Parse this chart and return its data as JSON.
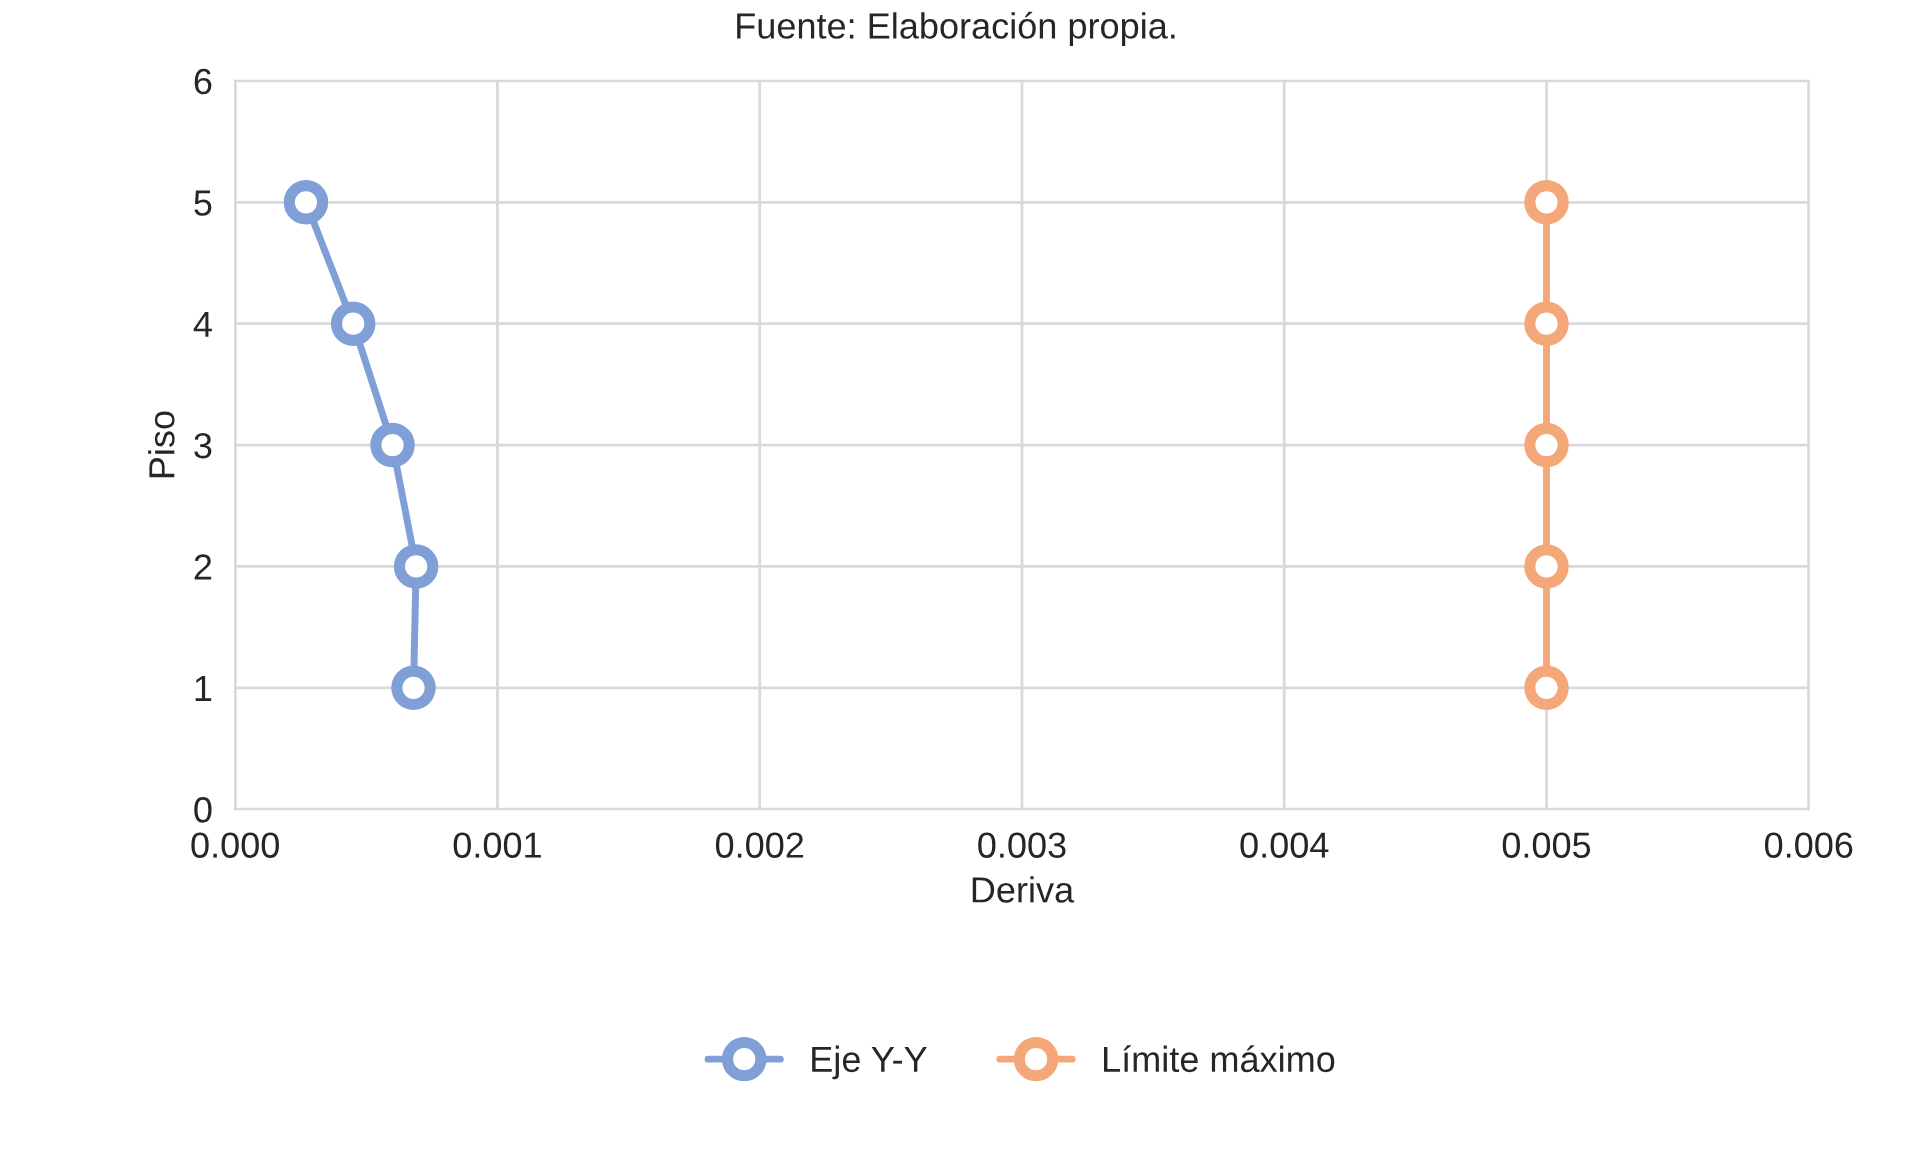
{
  "chart_data": {
    "type": "line",
    "xlabel": "Deriva",
    "ylabel": "Piso",
    "annotations": [
      "Fuente: Elaboración propia."
    ],
    "series": [
      {
        "name": "Eje Y-Y",
        "color": "#7f9fd6",
        "x": [
          0.00068,
          0.00069,
          0.0006,
          0.00045,
          0.00027
        ],
        "values": [
          1,
          2,
          3,
          4,
          5
        ]
      },
      {
        "name": "Límite máximo",
        "color": "#f4a87a",
        "x": [
          0.005,
          0.005,
          0.005,
          0.005,
          0.005
        ],
        "values": [
          1,
          2,
          3,
          4,
          5
        ]
      }
    ],
    "xlim": [
      0,
      0.006
    ],
    "xticks": [
      {
        "value": 0,
        "label": "0.000"
      },
      {
        "value": 0.001,
        "label": "0.001"
      },
      {
        "value": 0.002,
        "label": "0.002"
      },
      {
        "value": 0.003,
        "label": "0.003"
      },
      {
        "value": 0.004,
        "label": "0.004"
      },
      {
        "value": 0.005,
        "label": "0.005"
      },
      {
        "value": 0.006,
        "label": "0.006"
      }
    ],
    "ylim": [
      0,
      6
    ],
    "yticks": [
      0,
      1,
      2,
      3,
      4,
      5,
      6
    ],
    "grid": true,
    "legend": "bottom",
    "marker": "circle",
    "line_style": "solid"
  }
}
